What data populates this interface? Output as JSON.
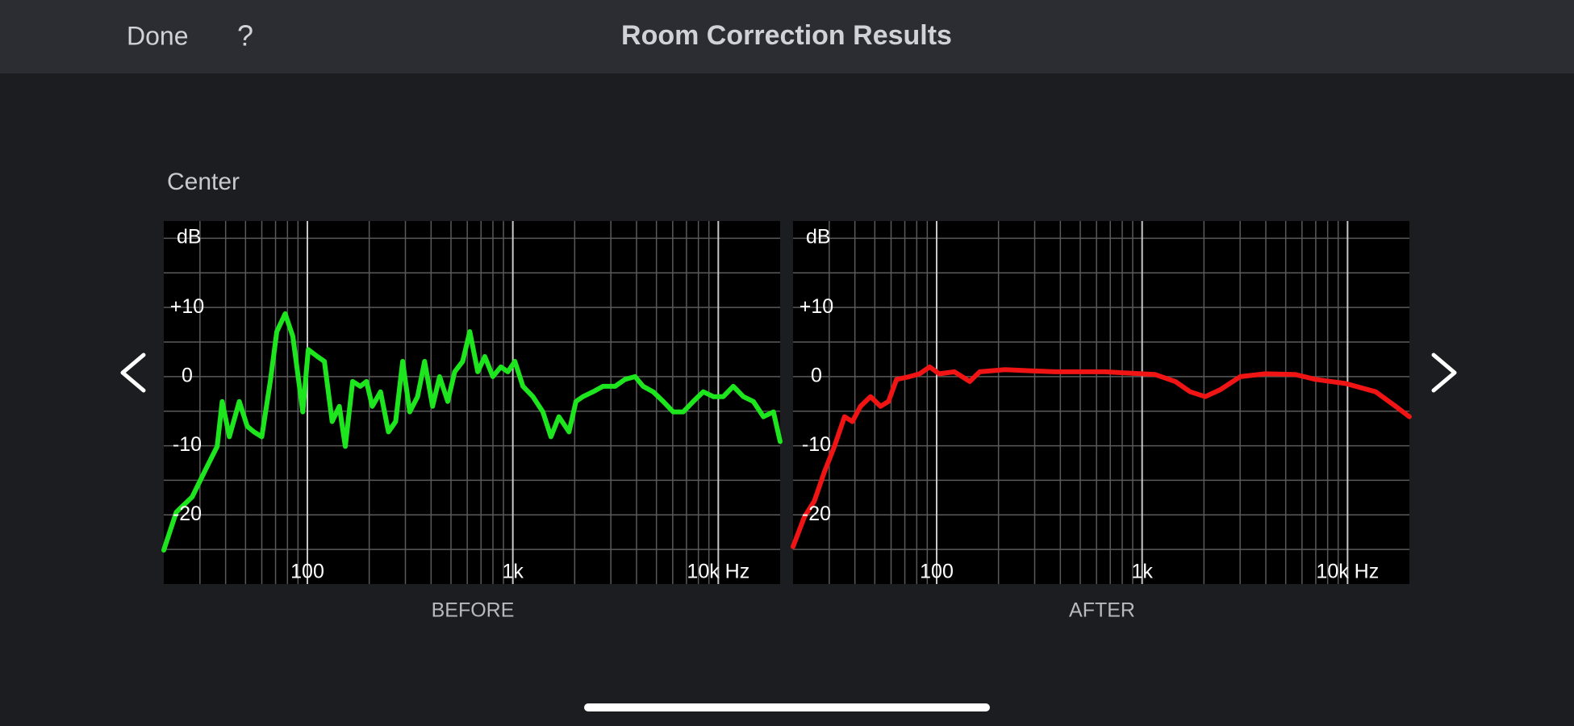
{
  "nav": {
    "done": "Done",
    "help": "?",
    "title": "Room Correction Results"
  },
  "section": "Center",
  "chart_data": [
    {
      "type": "line",
      "caption": "BEFORE",
      "ylabel": "dB",
      "xscale": "log",
      "color": "#1ee61e",
      "xlim": [
        20,
        20000
      ],
      "ylim": [
        -30,
        22.5
      ],
      "xticks": [
        {
          "value": 100,
          "label": "100"
        },
        {
          "value": 1000,
          "label": "1k"
        },
        {
          "value": 10000,
          "label": "10k Hz"
        }
      ],
      "yticks": [
        {
          "value": 10,
          "label": "+10"
        },
        0,
        -10,
        -20
      ],
      "xgrid": [
        30,
        40,
        50,
        60,
        70,
        80,
        90,
        200,
        300,
        400,
        500,
        600,
        700,
        800,
        900,
        2000,
        3000,
        4000,
        5000,
        6000,
        7000,
        8000,
        9000
      ],
      "ygrid": [
        -25,
        -15,
        -5,
        5,
        15,
        20
      ],
      "x": [
        20,
        23,
        27.5,
        32.5,
        36.4,
        38.5,
        41.7,
        46.6,
        51,
        55,
        60,
        66,
        71,
        78,
        85,
        95,
        101,
        112,
        121,
        132,
        143,
        153,
        166,
        181,
        194,
        207,
        227,
        248,
        269,
        291,
        315,
        344,
        372,
        407,
        440,
        482,
        521,
        570,
        617,
        675,
        730,
        799,
        874,
        946,
        1023,
        1120,
        1253,
        1400,
        1532,
        1676,
        1876,
        2028,
        2194,
        2455,
        2748,
        3146,
        3516,
        3936,
        4305,
        4819,
        5394,
        6030,
        6750,
        7550,
        8450,
        9460,
        10570,
        11830,
        13240,
        14820,
        16590,
        18550,
        20000
      ],
      "values": [
        -25.1,
        -19.6,
        -17.4,
        -13,
        -10.1,
        -3.6,
        -8.7,
        -3.6,
        -7.2,
        -8,
        -8.7,
        -0.7,
        6.5,
        9.1,
        5.8,
        -5.1,
        3.9,
        2.9,
        2.2,
        -6.5,
        -4.3,
        -10.1,
        -0.7,
        -1.4,
        -0.7,
        -4.3,
        -2.2,
        -8,
        -6.5,
        2.2,
        -5.1,
        -2.9,
        2.2,
        -4.3,
        0,
        -3.6,
        0.7,
        2.2,
        6.5,
        0.7,
        2.9,
        0,
        1.4,
        0.7,
        2.2,
        -1.4,
        -2.9,
        -5.1,
        -8.7,
        -5.8,
        -8,
        -3.6,
        -2.9,
        -2.2,
        -1.4,
        -1.4,
        -0.4,
        0,
        -1.4,
        -2.2,
        -3.6,
        -5.1,
        -5.1,
        -3.6,
        -2.2,
        -2.9,
        -2.9,
        -1.4,
        -2.9,
        -3.6,
        -5.8,
        -5.1,
        -9.4
      ]
    },
    {
      "type": "line",
      "caption": "AFTER",
      "ylabel": "dB",
      "xscale": "log",
      "color": "#f01414",
      "xlim": [
        20,
        20000
      ],
      "ylim": [
        -30,
        22.5
      ],
      "xticks": [
        {
          "value": 100,
          "label": "100"
        },
        {
          "value": 1000,
          "label": "1k"
        },
        {
          "value": 10000,
          "label": "10k Hz"
        }
      ],
      "yticks": [
        {
          "value": 10,
          "label": "+10"
        },
        0,
        -10,
        -20
      ],
      "xgrid": [
        30,
        40,
        50,
        60,
        70,
        80,
        90,
        200,
        300,
        400,
        500,
        600,
        700,
        800,
        900,
        2000,
        3000,
        4000,
        5000,
        6000,
        7000,
        8000,
        9000
      ],
      "ygrid": [
        -25,
        -15,
        -5,
        5,
        15,
        20
      ],
      "x": [
        20,
        22.7,
        25.4,
        28.4,
        31.8,
        35.6,
        38.9,
        42.6,
        47.7,
        53.3,
        58.3,
        63.8,
        73.8,
        82.6,
        92.5,
        103,
        122,
        145,
        162,
        215,
        377,
        660,
        1157,
        1449,
        1714,
        2028,
        2400,
        3006,
        3981,
        5572,
        6982,
        9772,
        13700,
        17140,
        20000
      ],
      "values": [
        -24.6,
        -20.3,
        -18,
        -13.8,
        -10.1,
        -5.8,
        -6.5,
        -4.3,
        -2.9,
        -4.3,
        -3.6,
        -0.4,
        0,
        0.4,
        1.4,
        0.4,
        0.7,
        -0.7,
        0.7,
        1,
        0.7,
        0.7,
        0.3,
        -0.7,
        -2.2,
        -2.9,
        -1.9,
        0,
        0.4,
        0.3,
        -0.4,
        -1,
        -2.2,
        -4.3,
        -5.8
      ]
    }
  ]
}
